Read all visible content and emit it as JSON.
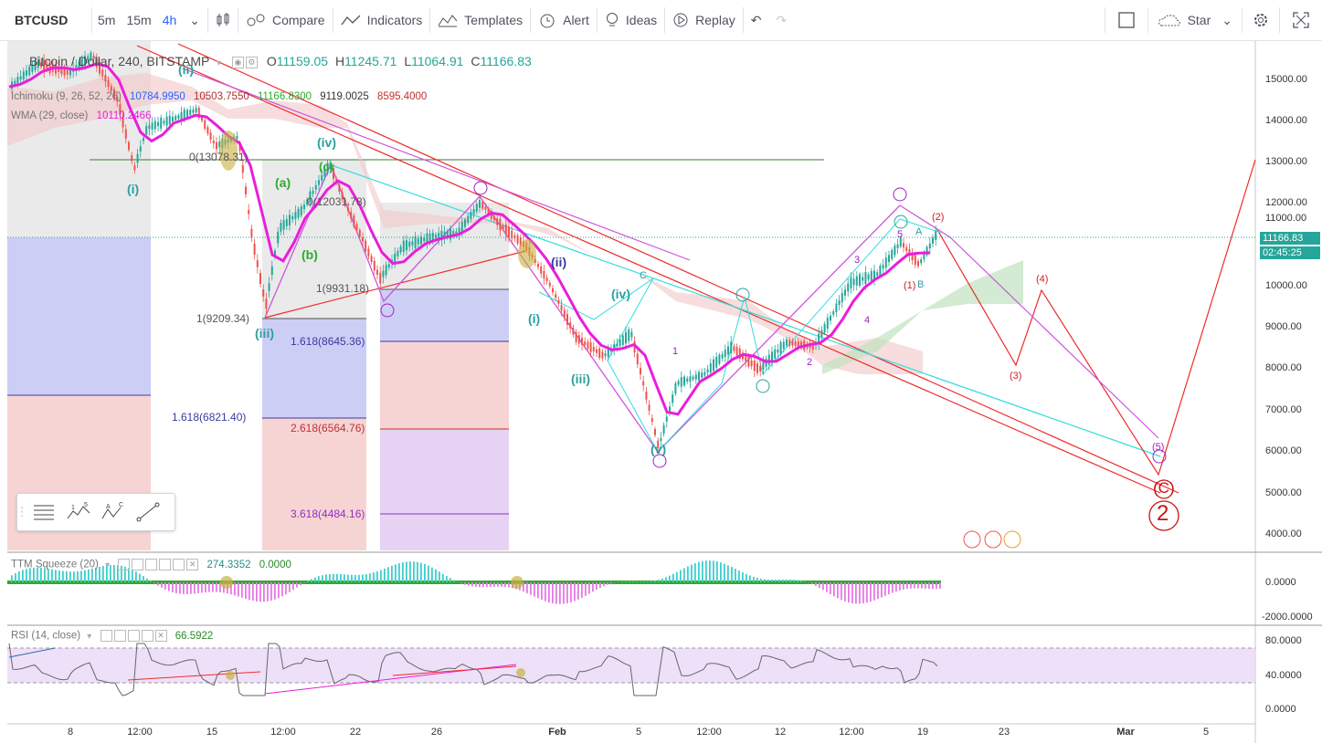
{
  "toolbar": {
    "symbol": "BTCUSD",
    "timeframes": [
      "5m",
      "15m",
      "4h"
    ],
    "active_timeframe": "4h",
    "compare_label": "Compare",
    "indicators_label": "Indicators",
    "templates_label": "Templates",
    "alert_label": "Alert",
    "ideas_label": "Ideas",
    "replay_label": "Replay",
    "star_label": "Star"
  },
  "legend": {
    "title": "Bitcoin / Dollar, 240, BITSTAMP",
    "o_label": "O",
    "o_value": "11159.05",
    "h_label": "H",
    "h_value": "11245.71",
    "l_label": "L",
    "l_value": "11064.91",
    "c_label": "C",
    "c_value": "11166.83"
  },
  "indicators": {
    "ichimoku_name": "Ichimoku (9, 26, 52, 26)",
    "ichimoku_values": [
      "10784.9950",
      "10503.7550",
      "11166.8300",
      "9119.0025",
      "8595.4000"
    ],
    "wma_name": "WMA (29, close)",
    "wma_value": "10110.2466",
    "ttm_name": "TTM Squeeze (20)",
    "ttm_values": [
      "274.3352",
      "0.0000"
    ],
    "rsi_name": "RSI (14, close)",
    "rsi_value": "66.5922"
  },
  "price_axis": {
    "labels": [
      "15000.00",
      "14000.00",
      "13000.00",
      "12000.00",
      "11000.00",
      "10000.00",
      "9000.00",
      "8000.00",
      "7000.00",
      "6000.00",
      "5000.00",
      "4000.00"
    ],
    "current_price": "11166.83",
    "countdown": "02:45:25",
    "ttm_labels": [
      "0.0000",
      "-2000.0000"
    ],
    "rsi_labels": [
      "80.0000",
      "40.0000",
      "0.0000"
    ]
  },
  "time_axis": [
    "8",
    "12:00",
    "15",
    "12:00",
    "22",
    "26",
    "Feb",
    "5",
    "12:00",
    "12",
    "12:00",
    "19",
    "23",
    "Mar",
    "5"
  ],
  "fib_labels": [
    "1(9209.34)",
    "1(9931.18)",
    "1.618(8645.36)",
    "1.618(6821.40)",
    "2.618(6564.76)",
    "3.618(4484.16)",
    "0(13078.31)",
    "0(12031.78)"
  ],
  "wave_labels": [
    "(i)",
    "(ii)",
    "(iii)",
    "(iv)",
    "(v)",
    "(a)",
    "(b)",
    "(c)",
    "(i)",
    "(ii)",
    "(iii)",
    "(iv)",
    "(1)",
    "(2)",
    "(3)",
    "(4)",
    "(5)",
    "1",
    "2",
    "3",
    "4",
    "5",
    "A",
    "B",
    "C",
    "(C)",
    "2"
  ],
  "colors": {
    "accent": "#2962ff",
    "up": "#26a69a",
    "down": "#ef5350",
    "wma": "#e91edb",
    "trendline_red": "#ee2b2b",
    "trendline_magenta": "#cc55dd",
    "trendline_cyan": "#33dddd",
    "wave_green": "#2eaa2e"
  },
  "icons": [
    "candles-icon",
    "compare-icon",
    "indicators-icon",
    "templates-icon",
    "alert-icon",
    "ideas-icon",
    "replay-icon",
    "undo-icon",
    "redo-icon",
    "layout-icon",
    "star-cloud-icon",
    "settings-icon",
    "fullscreen-icon"
  ]
}
